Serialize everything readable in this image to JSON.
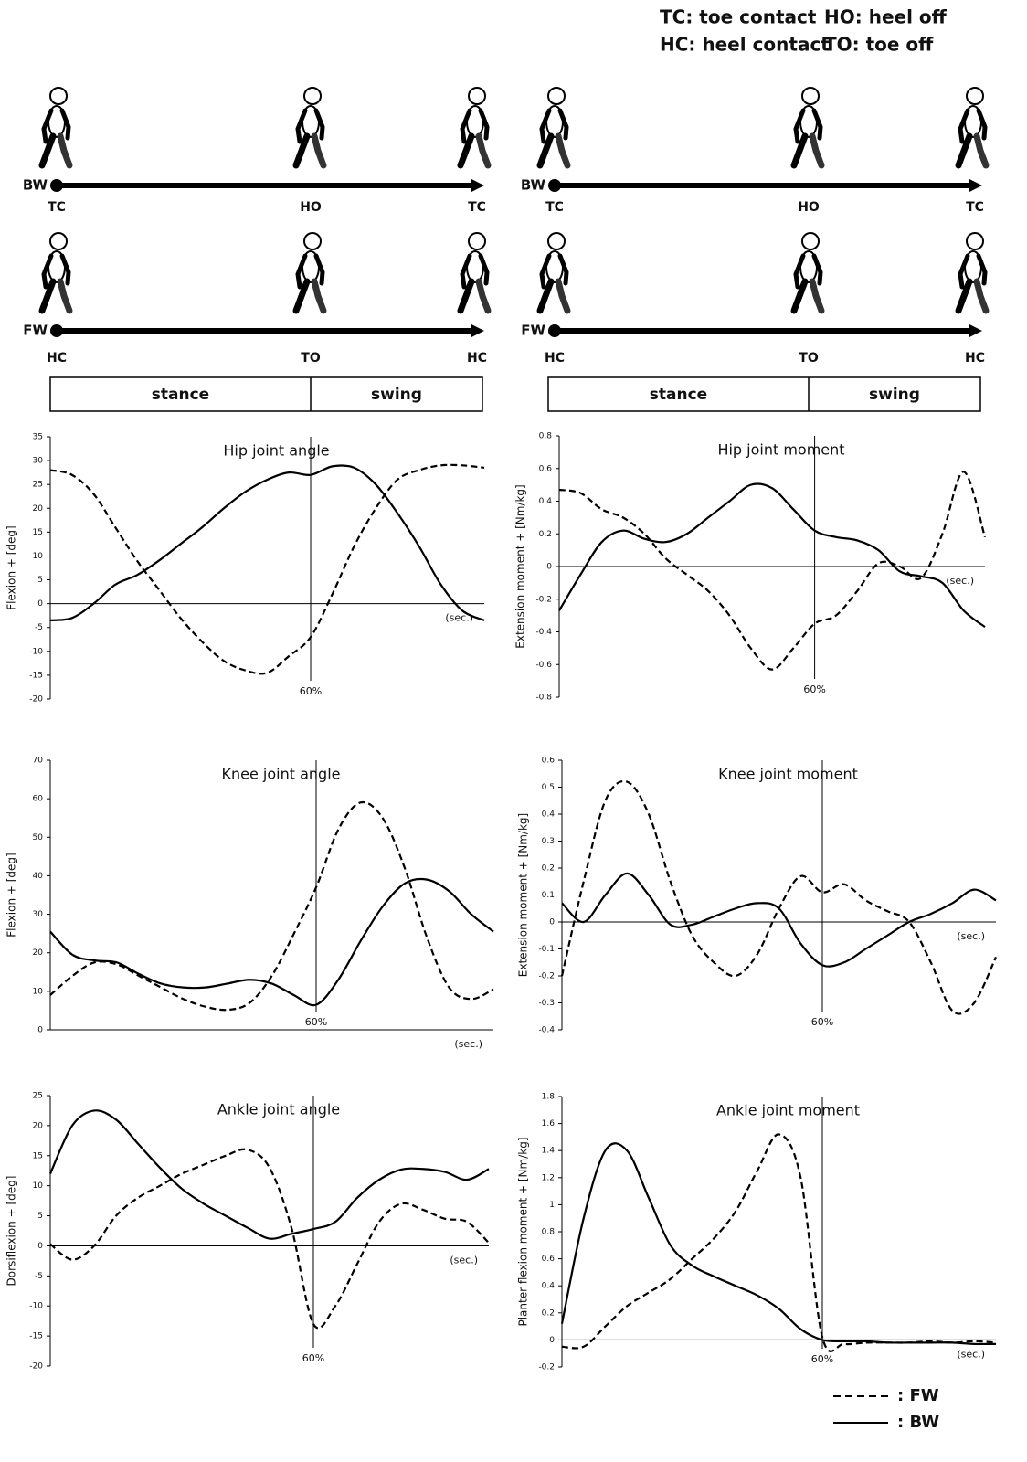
{
  "abbreviations": [
    "TC: toe contact",
    "HO: heel off",
    "HC: heel contact",
    "TO: toe off"
  ],
  "gait_diagrams": [
    {
      "rows": [
        {
          "label": "BW",
          "events": [
            "TC",
            "HO",
            "TC"
          ]
        },
        {
          "label": "FW",
          "events": [
            "HC",
            "TO",
            "HC"
          ]
        }
      ],
      "phases": [
        "stance",
        "swing"
      ]
    },
    {
      "rows": [
        {
          "label": "BW",
          "events": [
            "TC",
            "HO",
            "TC"
          ]
        },
        {
          "label": "FW",
          "events": [
            "HC",
            "TO",
            "HC"
          ]
        }
      ],
      "phases": [
        "stance",
        "swing"
      ]
    }
  ],
  "legend": [
    {
      "label": ": FW",
      "line_style": "dashed",
      "color": "#000000"
    },
    {
      "label": ": BW",
      "line_style": "solid",
      "color": "#000000"
    }
  ],
  "chart_data": [
    {
      "type": "line",
      "title": "Hip joint angle",
      "y_label": "Flexion + [deg]",
      "x_unit": "(sec.)",
      "phase_marker": {
        "value": 60,
        "label": "60%"
      },
      "x": [
        0,
        5,
        10,
        15,
        20,
        25,
        30,
        35,
        40,
        45,
        50,
        55,
        60,
        65,
        70,
        75,
        80,
        85,
        90,
        95,
        100
      ],
      "xlim": [
        0,
        100
      ],
      "ylim": [
        -20,
        35
      ],
      "yticks": [
        -20,
        -15,
        -10,
        -5,
        0,
        5,
        10,
        15,
        20,
        25,
        30,
        35
      ],
      "series": [
        {
          "values": [
            28,
            27,
            23,
            16,
            9,
            3,
            -3,
            -8,
            -12,
            -14,
            -14.5,
            -11,
            -7,
            2,
            12,
            20,
            26,
            28,
            29,
            29,
            28.5
          ]
        },
        {
          "values": [
            -3.5,
            -3,
            0,
            4,
            6,
            9,
            12.5,
            16,
            20,
            23.5,
            26,
            27.5,
            27,
            28.8,
            28.5,
            25,
            19,
            12,
            4,
            -1.5,
            -3.5
          ]
        }
      ]
    },
    {
      "type": "line",
      "title": "Hip joint moment",
      "y_label": "Extension moment + [Nm/kg]",
      "x_unit": "(sec.)",
      "phase_marker": {
        "value": 60,
        "label": "60%"
      },
      "x": [
        0,
        5,
        10,
        15,
        20,
        25,
        30,
        35,
        40,
        45,
        50,
        55,
        60,
        65,
        70,
        75,
        80,
        85,
        90,
        95,
        100
      ],
      "xlim": [
        0,
        100
      ],
      "ylim": [
        -0.8,
        0.8
      ],
      "yticks": [
        -0.8,
        -0.6,
        -0.4,
        -0.2,
        0,
        0.2,
        0.4,
        0.6,
        0.8
      ],
      "series": [
        {
          "values": [
            0.47,
            0.45,
            0.35,
            0.3,
            0.2,
            0.05,
            -0.05,
            -0.15,
            -0.3,
            -0.5,
            -0.63,
            -0.5,
            -0.35,
            -0.3,
            -0.15,
            0.02,
            0,
            -0.07,
            0.2,
            0.58,
            0.18
          ]
        },
        {
          "values": [
            -0.27,
            -0.05,
            0.15,
            0.22,
            0.17,
            0.15,
            0.2,
            0.3,
            0.4,
            0.5,
            0.48,
            0.35,
            0.22,
            0.18,
            0.16,
            0.1,
            -0.03,
            -0.06,
            -0.1,
            -0.27,
            -0.37
          ]
        }
      ]
    },
    {
      "type": "line",
      "title": "Knee joint angle",
      "y_label": "Flexion + [deg]",
      "x_unit": "(sec.)",
      "phase_marker": {
        "value": 60,
        "label": "60%"
      },
      "x": [
        0,
        5,
        10,
        15,
        20,
        25,
        30,
        35,
        40,
        45,
        50,
        55,
        60,
        65,
        70,
        75,
        80,
        85,
        90,
        95,
        100
      ],
      "xlim": [
        0,
        100
      ],
      "ylim": [
        0,
        70
      ],
      "yticks": [
        0,
        10,
        20,
        30,
        40,
        50,
        60,
        70
      ],
      "series": [
        {
          "values": [
            9,
            14,
            17.5,
            17,
            14,
            11,
            8,
            6,
            5.2,
            7,
            14,
            25,
            37,
            52,
            59,
            55,
            42,
            24,
            11,
            8,
            10.5
          ]
        },
        {
          "values": [
            25.5,
            19.5,
            18,
            17.5,
            14.5,
            12,
            11,
            11,
            12,
            13,
            12,
            9,
            6.5,
            13,
            23,
            32,
            38,
            39,
            36,
            30,
            25.5
          ]
        }
      ]
    },
    {
      "type": "line",
      "title": "Knee joint moment",
      "y_label": "Extension moment + [Nm/kg]",
      "x_unit": "(sec.)",
      "phase_marker": {
        "value": 60,
        "label": "60%"
      },
      "x": [
        0,
        5,
        10,
        15,
        20,
        25,
        30,
        35,
        40,
        45,
        50,
        55,
        60,
        65,
        70,
        75,
        80,
        85,
        90,
        95,
        100
      ],
      "xlim": [
        0,
        100
      ],
      "ylim": [
        -0.4,
        0.6
      ],
      "yticks": [
        -0.4,
        -0.3,
        -0.2,
        -0.1,
        0,
        0.1,
        0.2,
        0.3,
        0.4,
        0.5,
        0.6
      ],
      "series": [
        {
          "values": [
            -0.2,
            0.15,
            0.45,
            0.52,
            0.4,
            0.15,
            -0.05,
            -0.15,
            -0.2,
            -0.12,
            0.05,
            0.17,
            0.11,
            0.14,
            0.08,
            0.04,
            0,
            -0.15,
            -0.33,
            -0.3,
            -0.13
          ]
        },
        {
          "values": [
            0.07,
            0,
            0.1,
            0.18,
            0.1,
            -0.01,
            -0.01,
            0.02,
            0.05,
            0.07,
            0.05,
            -0.08,
            -0.16,
            -0.15,
            -0.1,
            -0.05,
            0,
            0.03,
            0.07,
            0.12,
            0.08
          ]
        }
      ]
    },
    {
      "type": "line",
      "title": "Ankle joint angle",
      "y_label": "Dorsiflexion + [deg]",
      "x_unit": "(sec.)",
      "phase_marker": {
        "value": 60,
        "label": "60%"
      },
      "x": [
        0,
        5,
        10,
        15,
        20,
        25,
        30,
        35,
        40,
        45,
        50,
        55,
        60,
        65,
        70,
        75,
        80,
        85,
        90,
        95,
        100
      ],
      "xlim": [
        0,
        100
      ],
      "ylim": [
        -20,
        25
      ],
      "yticks": [
        -20,
        -15,
        -10,
        -5,
        0,
        5,
        10,
        15,
        20,
        25
      ],
      "series": [
        {
          "values": [
            0.3,
            -2.3,
            0,
            5,
            8,
            10,
            12,
            13.5,
            15,
            16,
            13,
            3,
            -13,
            -10,
            -3,
            4,
            7,
            6,
            4.5,
            4,
            0.5
          ]
        },
        {
          "values": [
            12,
            20,
            22.5,
            21,
            17,
            13,
            9.5,
            7,
            5,
            3,
            1.2,
            2,
            2.8,
            4,
            8,
            11,
            12.7,
            12.8,
            12.3,
            11,
            12.8
          ]
        }
      ]
    },
    {
      "type": "line",
      "title": "Ankle joint moment",
      "y_label": "Planter flexion moment + [Nm/kg]",
      "x_unit": "(sec.)",
      "phase_marker": {
        "value": 60,
        "label": "60%"
      },
      "x": [
        0,
        5,
        10,
        15,
        20,
        25,
        30,
        35,
        40,
        45,
        50,
        55,
        60,
        65,
        70,
        75,
        80,
        85,
        90,
        95,
        100
      ],
      "xlim": [
        0,
        100
      ],
      "ylim": [
        -0.2,
        1.8
      ],
      "yticks": [
        -0.2,
        0,
        0.2,
        0.4,
        0.6,
        0.8,
        1,
        1.2,
        1.4,
        1.6,
        1.8
      ],
      "series": [
        {
          "values": [
            -0.05,
            -0.05,
            0.1,
            0.25,
            0.35,
            0.45,
            0.6,
            0.75,
            0.95,
            1.25,
            1.52,
            1.2,
            0.02,
            -0.03,
            -0.02,
            -0.02,
            -0.02,
            -0.01,
            -0.02,
            -0.01,
            -0.02
          ]
        },
        {
          "values": [
            0.12,
            0.9,
            1.4,
            1.4,
            1.05,
            0.7,
            0.55,
            0.47,
            0.4,
            0.33,
            0.23,
            0.08,
            0,
            -0.01,
            -0.01,
            -0.02,
            -0.02,
            -0.02,
            -0.02,
            -0.03,
            -0.03
          ]
        }
      ]
    }
  ]
}
